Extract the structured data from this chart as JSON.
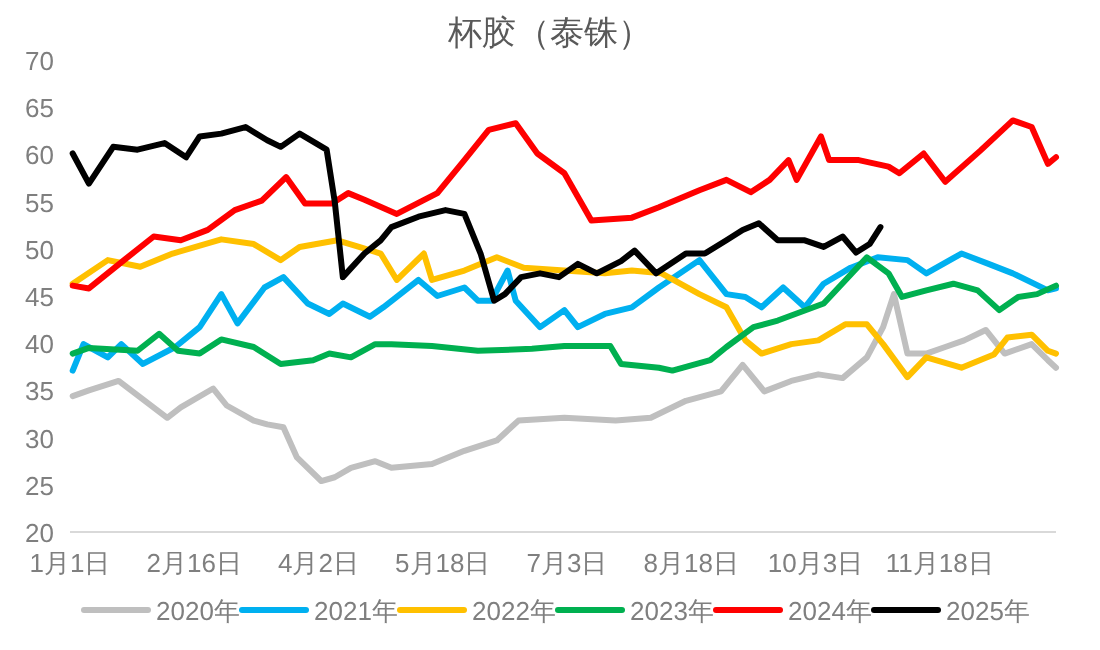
{
  "chart_data": {
    "type": "line",
    "title": "杯胶（泰铢）",
    "xlim": [
      "--01-01",
      "--12-31"
    ],
    "ylim": [
      20,
      70
    ],
    "yticks": [
      20,
      25,
      30,
      35,
      40,
      45,
      50,
      55,
      60,
      65,
      70
    ],
    "xticks": [
      {
        "value": "--01-01",
        "label": "1月1日"
      },
      {
        "value": "--02-16",
        "label": "2月16日"
      },
      {
        "value": "--04-02",
        "label": "4月2日"
      },
      {
        "value": "--05-18",
        "label": "5月18日"
      },
      {
        "value": "--07-03",
        "label": "7月3日"
      },
      {
        "value": "--08-18",
        "label": "8月18日"
      },
      {
        "value": "--10-03",
        "label": "10月3日"
      },
      {
        "value": "--11-18",
        "label": "11月18日"
      }
    ],
    "grid": false,
    "legend": "bottom",
    "marker": "none",
    "line_style": "solid",
    "series": [
      {
        "name": "2020年",
        "color": "#bfbfbf",
        "x": [
          "--01-02",
          "--01-08",
          "--01-19",
          "--02-06",
          "--02-11",
          "--02-23",
          "--02-28",
          "--03-09",
          "--03-14",
          "--03-20",
          "--03-25",
          "--04-03",
          "--04-08",
          "--04-14",
          "--04-23",
          "--04-29",
          "--05-14",
          "--05-26",
          "--06-07",
          "--06-15",
          "--07-02",
          "--07-21",
          "--08-03",
          "--08-16",
          "--08-29",
          "--09-06",
          "--09-14",
          "--09-24",
          "--10-04",
          "--10-13",
          "--10-22",
          "--10-28",
          "--11-01",
          "--11-06",
          "--11-13",
          "--11-20",
          "--11-27",
          "--12-05",
          "--12-12",
          "--12-22",
          "--12-28",
          "--12-31"
        ],
        "values": [
          34.4,
          35,
          36,
          32.1,
          33.2,
          35.2,
          33.4,
          31.8,
          31.4,
          31.1,
          27.9,
          25.4,
          25.8,
          26.8,
          27.5,
          26.8,
          27.2,
          28.6,
          29.7,
          31.8,
          32.1,
          31.8,
          32.1,
          33.9,
          34.9,
          37.7,
          34.9,
          36,
          36.7,
          36.3,
          38.5,
          41.7,
          45.2,
          38.9,
          38.9,
          39.6,
          40.3,
          41.4,
          38.9,
          39.9,
          38.2,
          37.4
        ]
      },
      {
        "name": "2021年",
        "color": "#00b0f0",
        "x": [
          "--01-02",
          "--01-06",
          "--01-15",
          "--01-20",
          "--01-28",
          "--02-09",
          "--02-18",
          "--02-26",
          "--03-03",
          "--03-13",
          "--03-20",
          "--03-29",
          "--04-06",
          "--04-11",
          "--04-21",
          "--04-26",
          "--05-09",
          "--05-16",
          "--05-26",
          "--05-31",
          "--06-05",
          "--06-11",
          "--06-14",
          "--06-23",
          "--07-02",
          "--07-07",
          "--07-17",
          "--07-27",
          "--08-06",
          "--08-21",
          "--08-31",
          "--09-07",
          "--09-13",
          "--09-21",
          "--09-29",
          "--10-06",
          "--10-16",
          "--10-26",
          "--11-06",
          "--11-13",
          "--11-26",
          "--12-06",
          "--12-15",
          "--12-28",
          "--12-31"
        ],
        "values": [
          37.1,
          39.9,
          38.5,
          39.9,
          37.8,
          39.6,
          41.7,
          45.2,
          42.1,
          45.9,
          47,
          44.2,
          43.1,
          44.2,
          42.8,
          43.8,
          46.7,
          45,
          45.9,
          44.5,
          44.5,
          47.7,
          44.5,
          41.7,
          43.5,
          41.7,
          43.1,
          43.8,
          45.9,
          48.8,
          45.2,
          44.9,
          43.8,
          45.9,
          43.8,
          46.3,
          48,
          49.1,
          48.8,
          47.4,
          49.5,
          48.4,
          47.4,
          45.6,
          45.8
        ]
      },
      {
        "name": "2022年",
        "color": "#ffc000",
        "x": [
          "--01-02",
          "--01-15",
          "--01-27",
          "--02-08",
          "--02-26",
          "--03-09",
          "--03-19",
          "--03-26",
          "--04-09",
          "--04-17",
          "--04-25",
          "--05-01",
          "--05-11",
          "--05-14",
          "--05-26",
          "--06-07",
          "--06-17",
          "--07-02",
          "--07-17",
          "--07-27",
          "--08-07",
          "--08-21",
          "--08-31",
          "--09-07",
          "--09-13",
          "--09-24",
          "--10-04",
          "--10-14",
          "--10-22",
          "--10-28",
          "--11-06",
          "--11-13",
          "--11-26",
          "--12-08",
          "--12-13",
          "--12-22",
          "--12-28",
          "--12-31"
        ],
        "values": [
          46.3,
          48.8,
          48.1,
          49.5,
          51,
          50.5,
          48.8,
          50.2,
          50.9,
          50.2,
          49.5,
          46.7,
          49.5,
          46.7,
          47.7,
          49.1,
          48,
          47.7,
          47.4,
          47.7,
          47.4,
          45.2,
          43.8,
          40.3,
          38.9,
          39.9,
          40.3,
          42,
          42,
          39.9,
          36.4,
          38.5,
          37.4,
          38.8,
          40.6,
          40.9,
          39.2,
          38.9
        ]
      },
      {
        "name": "2023年",
        "color": "#00b050",
        "x": [
          "--01-02",
          "--01-08",
          "--01-26",
          "--02-03",
          "--02-10",
          "--02-18",
          "--02-26",
          "--03-09",
          "--03-19",
          "--03-31",
          "--04-06",
          "--04-14",
          "--04-23",
          "--04-29",
          "--05-14",
          "--05-31",
          "--06-20",
          "--07-02",
          "--07-19",
          "--07-23",
          "--08-06",
          "--08-11",
          "--08-25",
          "--08-31",
          "--09-10",
          "--09-19",
          "--10-06",
          "--10-22",
          "--10-30",
          "--11-04",
          "--11-13",
          "--11-23",
          "--12-02",
          "--12-10",
          "--12-17",
          "--12-24",
          "--12-31"
        ],
        "values": [
          38.9,
          39.5,
          39.2,
          41,
          39.2,
          38.9,
          40.4,
          39.6,
          37.8,
          38.2,
          38.9,
          38.5,
          39.9,
          39.9,
          39.7,
          39.2,
          39.4,
          39.7,
          39.7,
          37.8,
          37.4,
          37.1,
          38.2,
          39.6,
          41.7,
          42.4,
          44.2,
          49.1,
          47.4,
          44.9,
          45.6,
          46.3,
          45.6,
          43.5,
          44.9,
          45.2,
          46.1
        ]
      },
      {
        "name": "2024年",
        "color": "#ff0000",
        "x": [
          "--01-02",
          "--01-08",
          "--01-21",
          "--02-01",
          "--02-11",
          "--02-21",
          "--03-02",
          "--03-12",
          "--03-21",
          "--03-28",
          "--04-07",
          "--04-13",
          "--04-19",
          "--05-01",
          "--05-16",
          "--05-26",
          "--06-04",
          "--06-14",
          "--06-22",
          "--07-02",
          "--07-12",
          "--07-27",
          "--08-06",
          "--08-21",
          "--08-31",
          "--09-09",
          "--09-16",
          "--09-23",
          "--09-26",
          "--10-05",
          "--10-08",
          "--10-19",
          "--10-30",
          "--11-03",
          "--11-12",
          "--11-20",
          "--12-03",
          "--12-15",
          "--12-22",
          "--12-28",
          "--12-31"
        ],
        "values": [
          46.1,
          45.8,
          48.8,
          51.3,
          50.9,
          52,
          54.1,
          55.1,
          57.6,
          54.8,
          54.8,
          55.9,
          55.2,
          53.7,
          55.9,
          59.4,
          62.6,
          63.3,
          60.1,
          58,
          53,
          53.3,
          54.4,
          56.2,
          57.3,
          56,
          57.3,
          59.4,
          57.3,
          61.9,
          59.4,
          59.4,
          58.7,
          58,
          60.1,
          57.1,
          60.4,
          63.6,
          62.9,
          59,
          59.7
        ]
      },
      {
        "name": "2025年",
        "color": "#000000",
        "x": [
          "--01-02",
          "--01-08",
          "--01-17",
          "--01-26",
          "--02-05",
          "--02-13",
          "--02-18",
          "--02-26",
          "--03-06",
          "--03-14",
          "--03-19",
          "--03-26",
          "--04-05",
          "--04-08",
          "--04-11",
          "--04-19",
          "--04-25",
          "--04-29",
          "--05-09",
          "--05-19",
          "--05-26",
          "--06-01",
          "--06-06",
          "--06-10",
          "--06-16",
          "--06-23",
          "--06-30",
          "--07-07",
          "--07-14",
          "--07-23",
          "--07-28",
          "--08-05",
          "--08-16",
          "--08-23",
          "--08-31",
          "--09-06",
          "--09-12",
          "--09-19",
          "--09-29",
          "--10-06",
          "--10-13",
          "--10-18",
          "--10-23",
          "--10-27"
        ],
        "values": [
          60.1,
          56.9,
          60.8,
          60.5,
          61.2,
          59.7,
          61.9,
          62.2,
          62.9,
          61.5,
          60.8,
          62.2,
          60.5,
          55,
          47,
          49.5,
          50.9,
          52.3,
          53.4,
          54.1,
          53.7,
          49.5,
          44.5,
          45.2,
          47,
          47.4,
          47,
          48.4,
          47.4,
          48.7,
          49.8,
          47.4,
          49.5,
          49.5,
          50.9,
          52,
          52.7,
          50.9,
          50.9,
          50.2,
          51.3,
          49.6,
          50.5,
          52.3
        ]
      }
    ]
  }
}
